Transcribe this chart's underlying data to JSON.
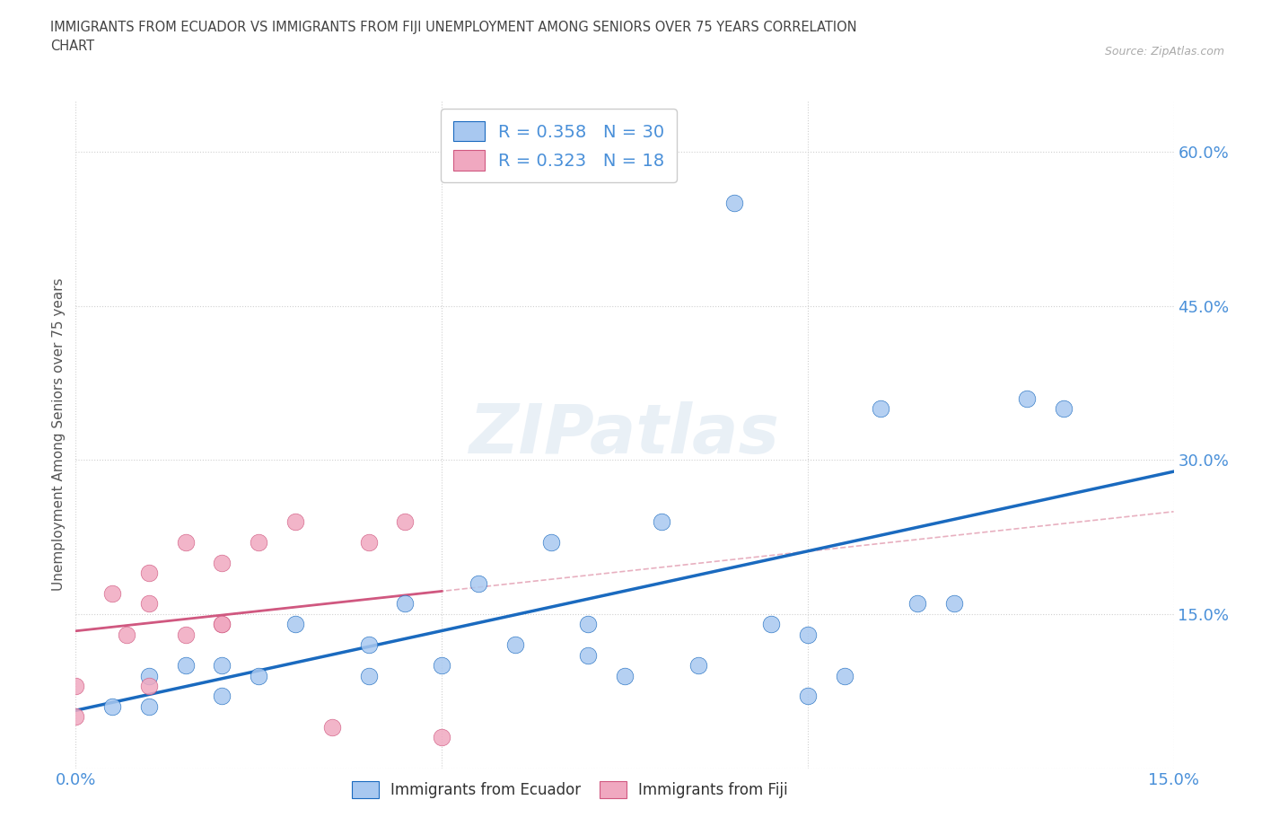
{
  "title": "IMMIGRANTS FROM ECUADOR VS IMMIGRANTS FROM FIJI UNEMPLOYMENT AMONG SENIORS OVER 75 YEARS CORRELATION\nCHART",
  "source": "Source: ZipAtlas.com",
  "ylabel": "Unemployment Among Seniors over 75 years",
  "xlim": [
    0.0,
    0.15
  ],
  "ylim": [
    0.0,
    0.65
  ],
  "ecuador_R": 0.358,
  "ecuador_N": 30,
  "fiji_R": 0.323,
  "fiji_N": 18,
  "ecuador_color": "#a8c8f0",
  "fiji_color": "#f0a8c0",
  "ecuador_line_color": "#1a6abf",
  "fiji_line_color": "#d05880",
  "ref_line_color": "#e8b0c0",
  "watermark": "ZIPatlas",
  "ecuador_x": [
    0.005,
    0.01,
    0.01,
    0.015,
    0.02,
    0.02,
    0.025,
    0.03,
    0.04,
    0.04,
    0.045,
    0.05,
    0.055,
    0.06,
    0.065,
    0.07,
    0.07,
    0.075,
    0.08,
    0.085,
    0.09,
    0.095,
    0.1,
    0.1,
    0.105,
    0.11,
    0.115,
    0.12,
    0.13,
    0.135
  ],
  "ecuador_y": [
    0.06,
    0.09,
    0.06,
    0.1,
    0.1,
    0.07,
    0.09,
    0.14,
    0.12,
    0.09,
    0.16,
    0.1,
    0.18,
    0.12,
    0.22,
    0.14,
    0.11,
    0.09,
    0.24,
    0.1,
    0.55,
    0.14,
    0.13,
    0.07,
    0.09,
    0.35,
    0.16,
    0.16,
    0.36,
    0.35
  ],
  "fiji_x": [
    0.0,
    0.0,
    0.005,
    0.007,
    0.01,
    0.01,
    0.01,
    0.015,
    0.015,
    0.02,
    0.02,
    0.02,
    0.025,
    0.03,
    0.035,
    0.04,
    0.045,
    0.05
  ],
  "fiji_y": [
    0.08,
    0.05,
    0.17,
    0.13,
    0.08,
    0.16,
    0.19,
    0.13,
    0.22,
    0.14,
    0.14,
    0.2,
    0.22,
    0.24,
    0.04,
    0.22,
    0.24,
    0.03
  ],
  "tick_color": "#4a90d9",
  "label_color": "#555555",
  "grid_color": "#d0d0d0"
}
